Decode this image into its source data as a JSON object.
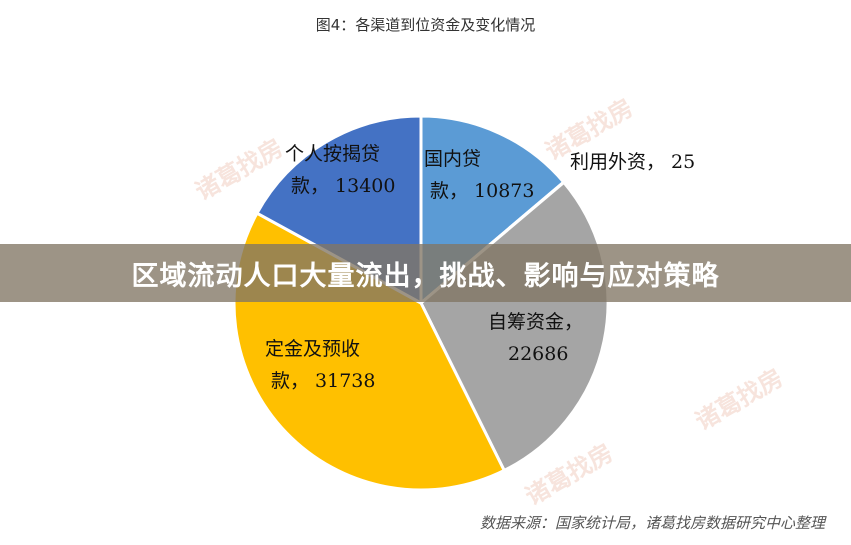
{
  "chart_data": {
    "type": "pie",
    "title": "图4：各渠道到位资金及变化情况",
    "slices": [
      {
        "label_line1": "国内贷",
        "label_line2": "款，",
        "value_text": "10873",
        "value": 10873,
        "color": "#5b9bd5"
      },
      {
        "label_line1": "利用外资，",
        "label_line2": "",
        "value_text": "25",
        "value": 25,
        "color": "#ed7d31"
      },
      {
        "label_line1": "自筹资金，",
        "label_line2": "",
        "value_text": "22686",
        "value": 22686,
        "color": "#a5a5a5"
      },
      {
        "label_line1": "定金及预收",
        "label_line2": "款，",
        "value_text": "31738",
        "value": 31738,
        "color": "#ffc000"
      },
      {
        "label_line1": "个人按揭贷",
        "label_line2": "款，",
        "value_text": "13400",
        "value": 13400,
        "color": "#4472c4"
      }
    ]
  },
  "banner": {
    "text": "区域流动人口大量流出，挑战、影响与应对策略"
  },
  "source": {
    "text": "数据来源：国家统计局，诸葛找房数据研究中心整理"
  },
  "watermark": {
    "text": "诸葛找房"
  }
}
